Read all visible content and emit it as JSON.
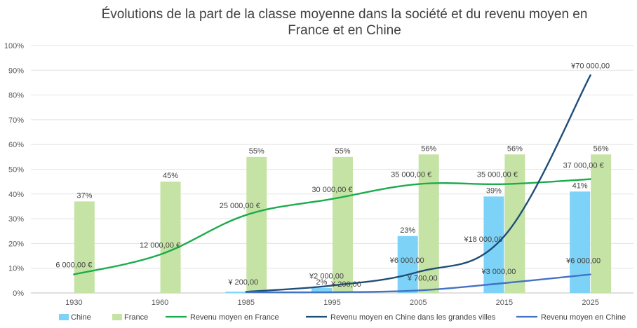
{
  "chart_data": {
    "type": "bar",
    "title": "Évolutions de la part de la classe moyenne dans la société et du revenu moyen en France et en Chine",
    "title_lines": [
      "Évolutions de la part de la classe moyenne dans la société et du revenu moyen en",
      "France et en Chine"
    ],
    "categories": [
      "1930",
      "1960",
      "1985",
      "1995",
      "2005",
      "2015",
      "2025"
    ],
    "y_ticks": [
      "0%",
      "10%",
      "20%",
      "30%",
      "40%",
      "50%",
      "60%",
      "70%",
      "80%",
      "90%",
      "100%"
    ],
    "ylim": [
      0,
      100
    ],
    "grid": true,
    "legend_position": "bottom",
    "series": [
      {
        "name": "Chine",
        "kind": "bar",
        "color": "#7dd3f7",
        "values": [
          null,
          null,
          0.5,
          2,
          23,
          39,
          41
        ],
        "labels": [
          "",
          "",
          "",
          "2%",
          "23%",
          "39%",
          "41%"
        ]
      },
      {
        "name": "France",
        "kind": "bar",
        "color": "#c5e3a4",
        "values": [
          37,
          45,
          55,
          55,
          56,
          56,
          56
        ],
        "labels": [
          "37%",
          "45%",
          "55%",
          "55%",
          "56%",
          "56%",
          "56%"
        ]
      },
      {
        "name": "Revenu moyen en France",
        "kind": "line",
        "color": "#1bac4b",
        "values": [
          7.5,
          15.5,
          31.5,
          38,
          44,
          44,
          46
        ],
        "labels": [
          "6 000,00 €",
          "12 000,00 €",
          "25 000,00 €",
          "30 000,00 €",
          "35 000,00 €",
          "35 000,00 €",
          "37 000,00 €"
        ]
      },
      {
        "name": "Revenu moyen en Chine dans les grandes villes",
        "kind": "line",
        "color": "#1f4e79",
        "values": [
          null,
          null,
          0.5,
          3,
          8.5,
          23,
          88
        ],
        "labels": [
          "",
          "",
          "¥ 200,00",
          "¥2 000,00",
          "¥6 000,00",
          "¥18 000,00",
          "¥70 000,00"
        ]
      },
      {
        "name": "Revenu moyen en Chine",
        "kind": "line",
        "color": "#4472c4",
        "values": [
          null,
          null,
          0.3,
          0.3,
          1,
          4,
          7.5
        ],
        "labels": [
          "",
          "",
          "",
          "¥ 200,00",
          "¥ 700,00",
          "¥3 000,00",
          "¥6 000,00"
        ]
      }
    ]
  }
}
